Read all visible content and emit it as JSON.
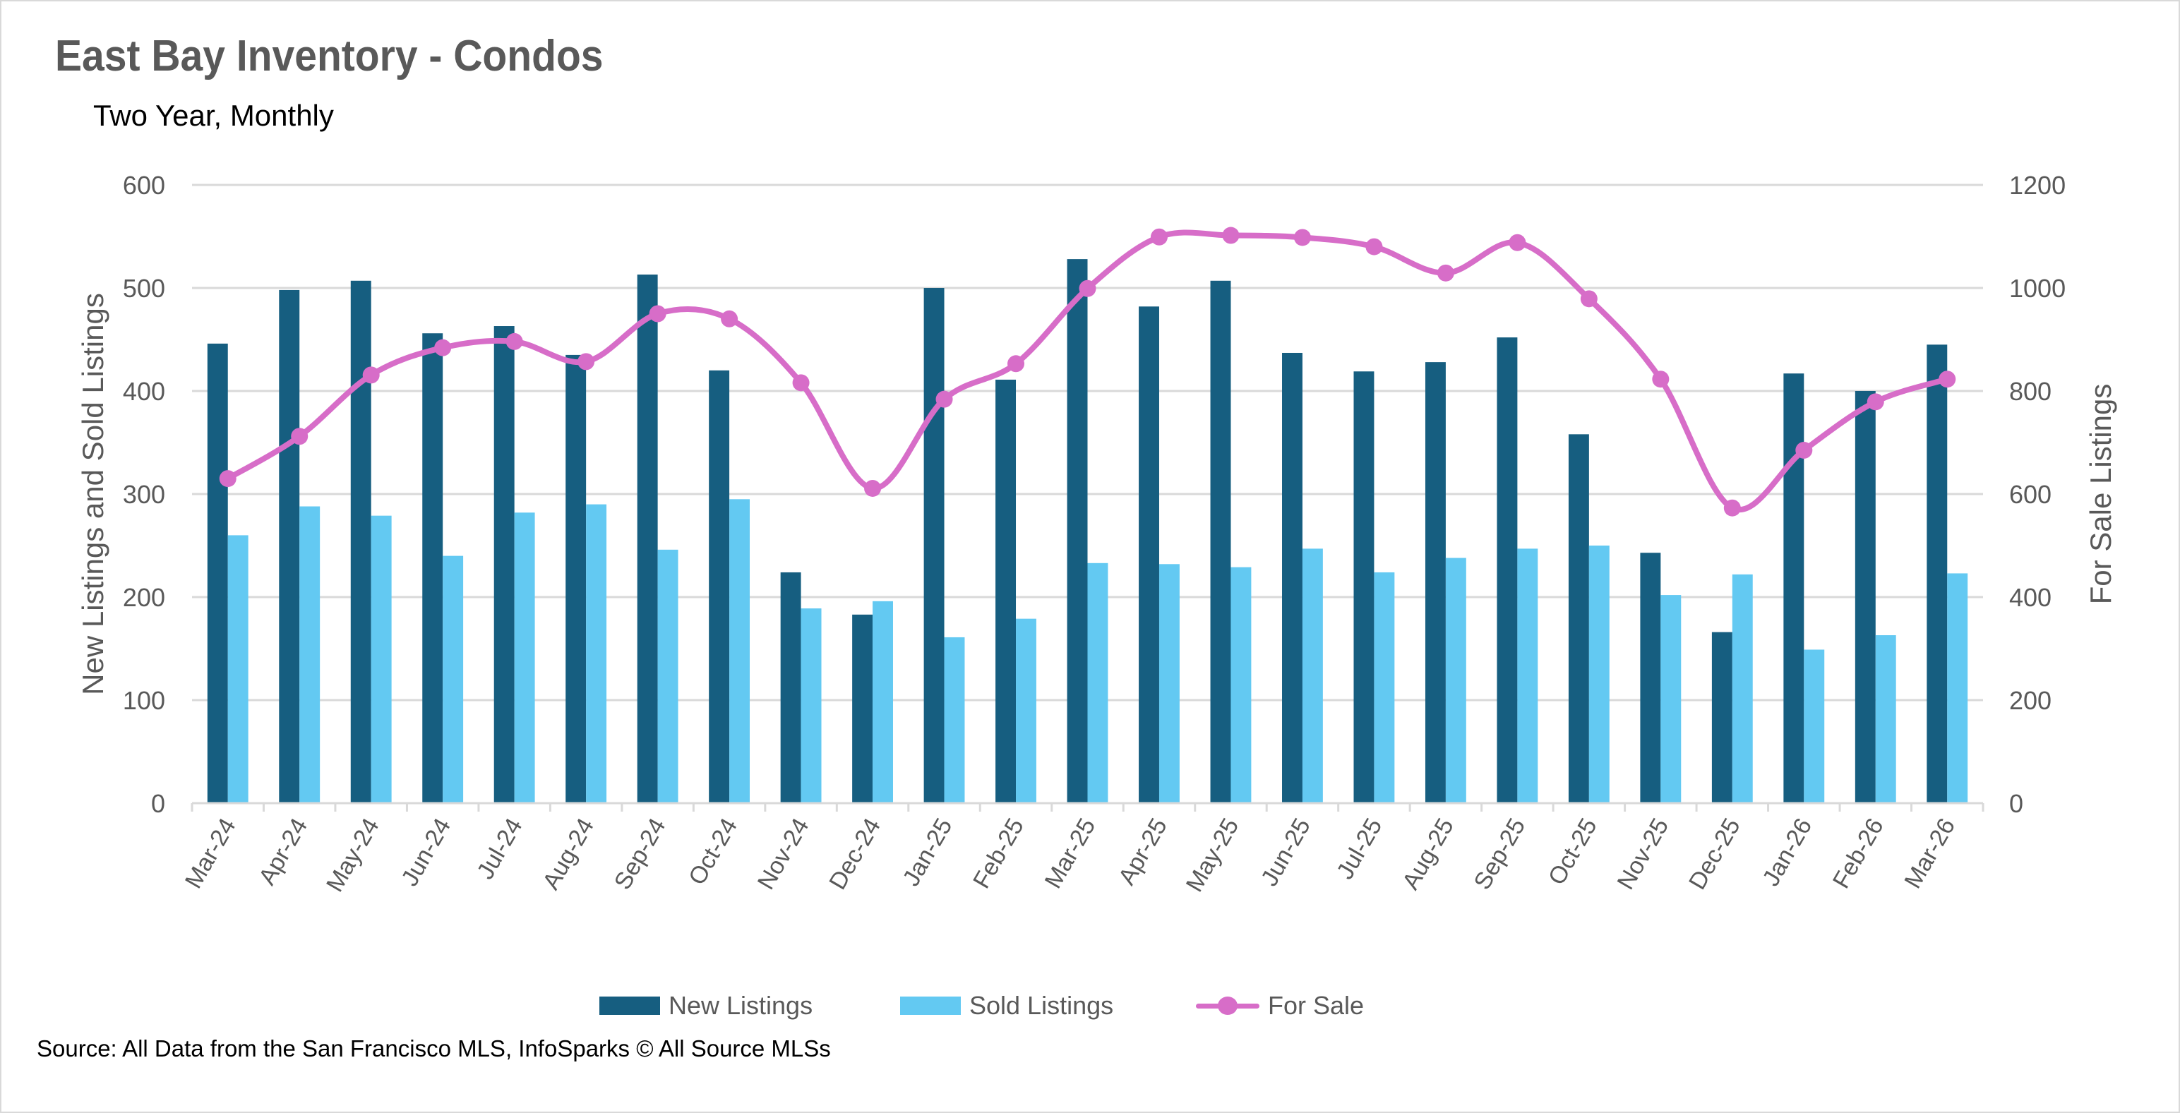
{
  "colors": {
    "new_listings": "#165E80",
    "sold_listings": "#63C9F2",
    "for_sale": "#D76DC8",
    "grid": "#D9D9D9",
    "text": "#595959"
  },
  "source": "Source: All Data from the San Francisco MLS, InfoSparks © All Source MLSs",
  "chart_data": {
    "type": "bar",
    "title": "East Bay Inventory - Condos",
    "subtitle": "Two Year, Monthly",
    "xlabel": "",
    "ylabel": "New Listings and Sold Listings",
    "y2label": "For Sale Listings",
    "ylim": [
      0,
      600
    ],
    "y2lim": [
      0,
      1200
    ],
    "yticks": [
      "0",
      "100",
      "200",
      "300",
      "400",
      "500",
      "600"
    ],
    "y2ticks": [
      "0",
      "200",
      "400",
      "600",
      "800",
      "1000",
      "1200"
    ],
    "grid": true,
    "legend_position": "bottom",
    "categories": [
      "Mar-24",
      "Apr-24",
      "May-24",
      "Jun-24",
      "Jul-24",
      "Aug-24",
      "Sep-24",
      "Oct-24",
      "Nov-24",
      "Dec-24",
      "Jan-25",
      "Feb-25",
      "Mar-25",
      "Apr-25",
      "May-25",
      "Jun-25",
      "Jul-25",
      "Aug-25",
      "Sep-25",
      "Oct-25",
      "Nov-25",
      "Dec-25",
      "Jan-26",
      "Feb-26",
      "Mar-26"
    ],
    "series": [
      {
        "name": "New Listings",
        "type": "bar",
        "axis": "left",
        "values": [
          446,
          498,
          507,
          456,
          463,
          435,
          513,
          420,
          224,
          183,
          500,
          411,
          528,
          482,
          507,
          437,
          419,
          428,
          452,
          358,
          243,
          166,
          417,
          400,
          445
        ]
      },
      {
        "name": "Sold Listings",
        "type": "bar",
        "axis": "left",
        "values": [
          260,
          288,
          279,
          240,
          282,
          290,
          246,
          295,
          189,
          196,
          161,
          179,
          233,
          232,
          229,
          247,
          224,
          238,
          247,
          250,
          202,
          222,
          149,
          163,
          223
        ]
      },
      {
        "name": "For Sale",
        "type": "line",
        "axis": "right",
        "smooth": true,
        "values": [
          630,
          712,
          831,
          884,
          896,
          857,
          950,
          940,
          816,
          611,
          784,
          853,
          999,
          1099,
          1102,
          1098,
          1080,
          1029,
          1088,
          979,
          823,
          573,
          685,
          779,
          823
        ]
      }
    ]
  }
}
